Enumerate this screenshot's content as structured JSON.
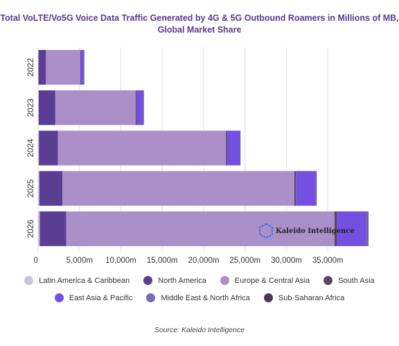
{
  "chart_data": {
    "type": "bar",
    "orientation": "horizontal",
    "stacked": true,
    "title": "Total VoLTE/Vo5G Voice Data Traffic Generated by 4G & 5G Outbound Roamers in Millions of MB, Global Market Share",
    "categories": [
      "2022",
      "2023",
      "2024",
      "2025",
      "2026"
    ],
    "x_ticks": [
      "0",
      "5,000m",
      "10,000m",
      "15,000m",
      "20,000m",
      "25,000m",
      "30,000m",
      "35,000m"
    ],
    "x_tick_values": [
      0,
      5000,
      10000,
      15000,
      20000,
      25000,
      30000,
      35000
    ],
    "xlim": [
      0,
      40000
    ],
    "grid": true,
    "legend_position": "bottom",
    "series": [
      {
        "name": "Latin America & Caribbean",
        "color": "#c9c4d6",
        "values": [
          50,
          80,
          100,
          150,
          200
        ]
      },
      {
        "name": "North America",
        "color": "#5a3e94",
        "values": [
          900,
          2000,
          2300,
          2800,
          3200
        ]
      },
      {
        "name": "Europe & Central Asia",
        "color": "#ab8fc9",
        "values": [
          4150,
          9700,
          20300,
          28000,
          32400
        ]
      },
      {
        "name": "South Asia",
        "color": "#5a4668",
        "values": [
          50,
          100,
          150,
          200,
          300
        ]
      },
      {
        "name": "East Asia & Pacific",
        "color": "#7350e0",
        "values": [
          350,
          800,
          1500,
          2400,
          3600
        ]
      },
      {
        "name": "Middle East & North Africa",
        "color": "#7a6bb5",
        "values": [
          30,
          50,
          50,
          60,
          100
        ]
      },
      {
        "name": "Sub-Saharan Africa",
        "color": "#4a3658",
        "values": [
          20,
          30,
          40,
          50,
          100
        ]
      }
    ]
  },
  "source": "Source: Kaleido Intelligence",
  "watermark": {
    "text": "Kaleido Intelligence",
    "icon": "hexagon-logo-icon"
  }
}
